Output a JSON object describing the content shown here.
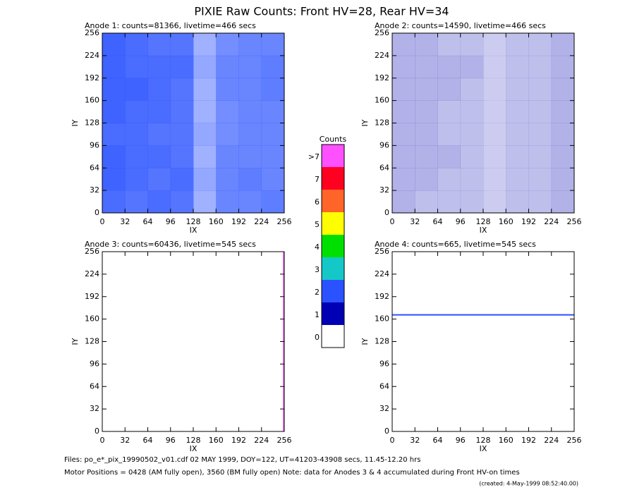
{
  "chart_data": {
    "type": "heatmap",
    "title": "PIXIE Raw Counts:  Front HV=28, Rear HV=34",
    "xlabel": "IX",
    "ylabel": "IY",
    "xlim": [
      0,
      256
    ],
    "ylim": [
      0,
      256
    ],
    "xticks": [
      0,
      32,
      64,
      96,
      128,
      160,
      192,
      224,
      256
    ],
    "yticks": [
      0,
      32,
      64,
      96,
      128,
      160,
      192,
      224,
      256
    ],
    "panels": [
      {
        "title": "Anode 1: counts=81366, livetime=466 secs",
        "level": 2,
        "density": [
          [
            0.85,
            0.8,
            0.85,
            0.8,
            0.45,
            0.7,
            0.7,
            0.75
          ],
          [
            0.9,
            0.85,
            0.8,
            0.85,
            0.5,
            0.7,
            0.75,
            0.7
          ],
          [
            0.9,
            0.85,
            0.85,
            0.8,
            0.45,
            0.7,
            0.7,
            0.7
          ],
          [
            0.85,
            0.85,
            0.8,
            0.8,
            0.5,
            0.65,
            0.7,
            0.7
          ],
          [
            0.9,
            0.85,
            0.85,
            0.8,
            0.45,
            0.65,
            0.7,
            0.7
          ],
          [
            0.9,
            0.9,
            0.85,
            0.8,
            0.45,
            0.7,
            0.7,
            0.75
          ],
          [
            0.9,
            0.85,
            0.85,
            0.85,
            0.5,
            0.7,
            0.7,
            0.75
          ],
          [
            0.9,
            0.85,
            0.8,
            0.8,
            0.45,
            0.65,
            0.7,
            0.7
          ]
        ]
      },
      {
        "title": "Anode 2: counts=14590, livetime=466 secs",
        "level": 1,
        "density": [
          [
            0.3,
            0.25,
            0.25,
            0.25,
            0.2,
            0.25,
            0.25,
            0.3
          ],
          [
            0.3,
            0.3,
            0.25,
            0.25,
            0.2,
            0.25,
            0.25,
            0.3
          ],
          [
            0.3,
            0.3,
            0.3,
            0.25,
            0.2,
            0.25,
            0.25,
            0.3
          ],
          [
            0.3,
            0.3,
            0.25,
            0.25,
            0.2,
            0.25,
            0.25,
            0.3
          ],
          [
            0.3,
            0.3,
            0.25,
            0.25,
            0.2,
            0.25,
            0.25,
            0.3
          ],
          [
            0.3,
            0.3,
            0.3,
            0.25,
            0.2,
            0.25,
            0.25,
            0.3
          ],
          [
            0.3,
            0.3,
            0.3,
            0.3,
            0.2,
            0.25,
            0.25,
            0.3
          ],
          [
            0.3,
            0.3,
            0.25,
            0.25,
            0.2,
            0.25,
            0.25,
            0.3
          ]
        ]
      },
      {
        "title": "Anode 3: counts=60436, livetime=545 secs",
        "vline": 255,
        "line_level": 8
      },
      {
        "title": "Anode 4: counts=665, livetime=545 secs",
        "hline": 166,
        "line_level": 2
      }
    ],
    "colorbar": {
      "title": "Counts",
      "ticks": [
        0,
        1,
        2,
        3,
        4,
        5,
        6,
        7,
        {
          "value": 8,
          "label": ">7"
        }
      ],
      "colors": [
        "#ffffff",
        "#0000b4",
        "#2a52ff",
        "#14c8c8",
        "#00e000",
        "#ffff00",
        "#ff6428",
        "#ff0020",
        "#ff50ff"
      ]
    }
  },
  "footer": {
    "files": "Files: po_e*_pix_19990502_v01.cdf    02 MAY 1999, DOY=122, UT=41203-43908 secs, 11.45-12.20 hrs",
    "motor": "Motor Positions = 0428 (AM fully open), 3560 (BM fully open)    Note: data for Anodes 3 & 4 accumulated during Front HV-on times",
    "created": "(created:  4-May-1999 08:52:40.00)"
  }
}
